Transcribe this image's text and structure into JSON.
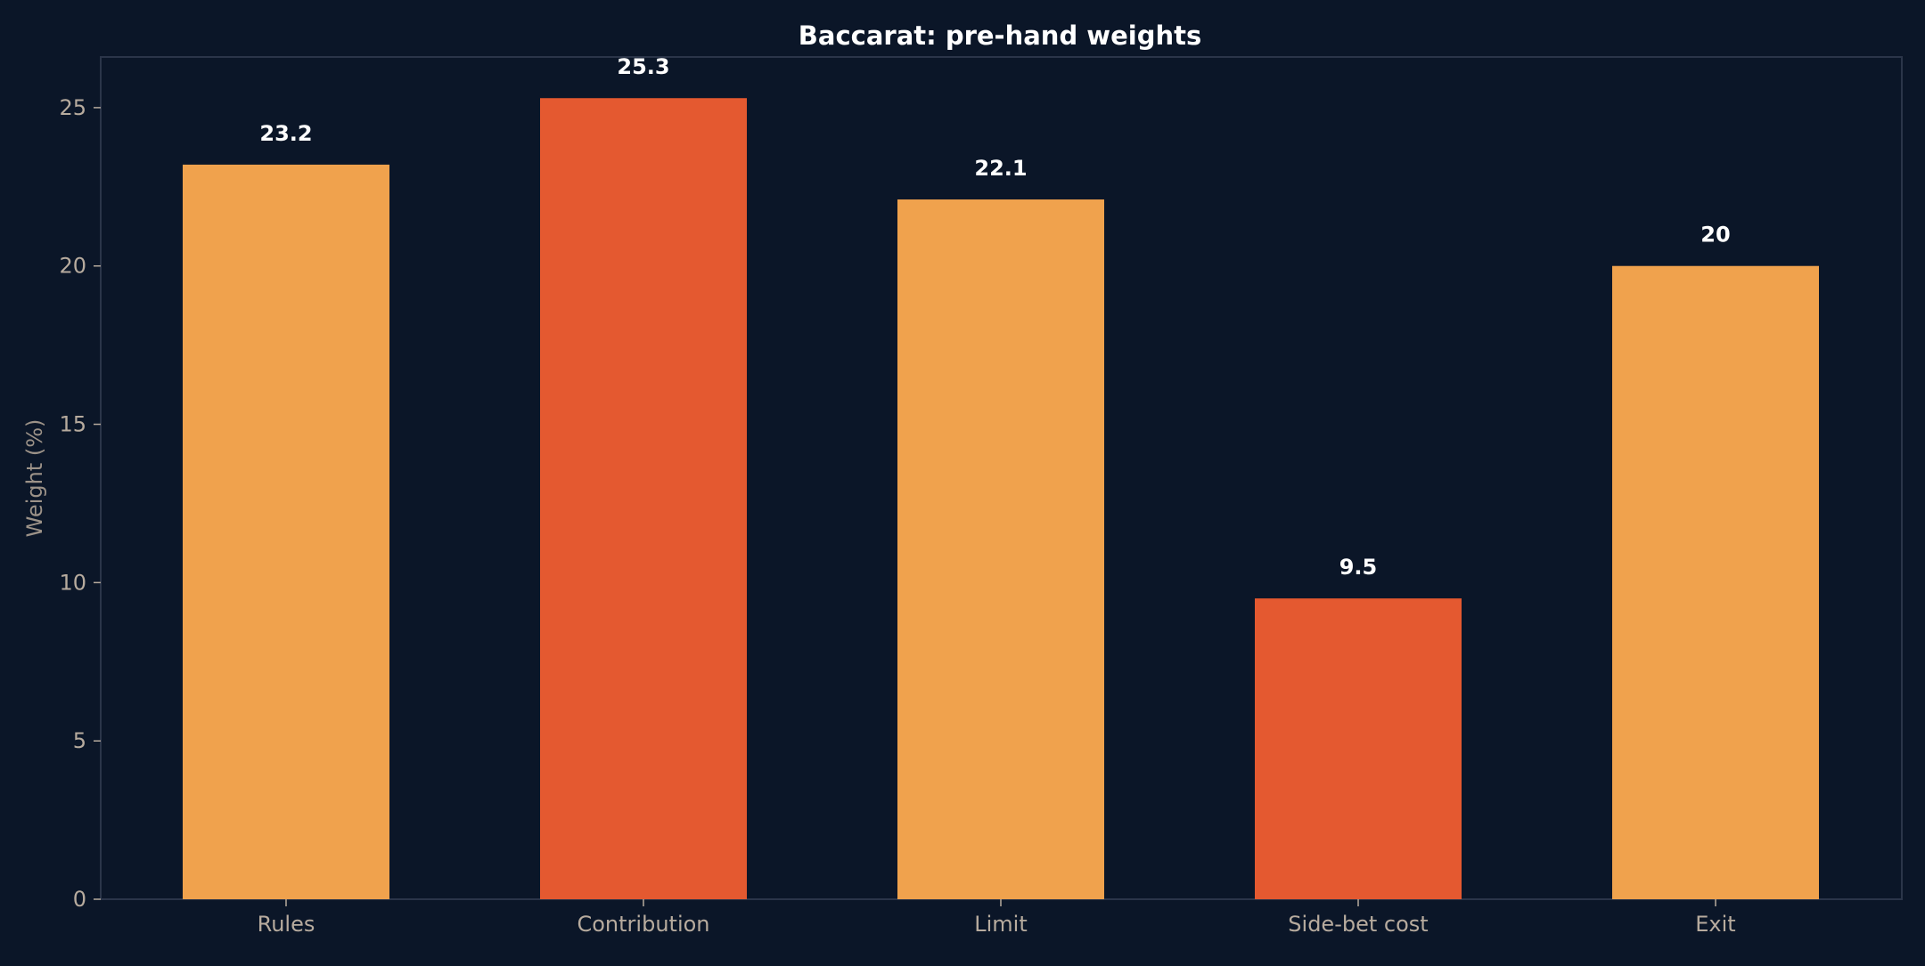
{
  "chart_data": {
    "type": "bar",
    "title": "Baccarat: pre-hand weights",
    "xlabel": "",
    "ylabel": "Weight (%)",
    "categories": [
      "Rules",
      "Contribution",
      "Limit",
      "Side-bet cost",
      "Exit"
    ],
    "values": [
      23.2,
      25.3,
      22.1,
      9.5,
      20
    ],
    "value_labels": [
      "23.2",
      "25.3",
      "22.1",
      "9.5",
      "20"
    ],
    "bar_colors": [
      "#f0a24d",
      "#e45930",
      "#f0a24d",
      "#e45930",
      "#f0a24d"
    ],
    "ylim": [
      0,
      26.6
    ],
    "yticks": [
      0,
      5,
      10,
      15,
      20,
      25
    ],
    "grid": false,
    "legend": "none"
  },
  "colors": {
    "background": "#0b1628",
    "axis": "#2b3549",
    "title": "#ffffff",
    "tick_text": "#b7ab9e",
    "ylabel_text": "#9c9288",
    "value_text": "#ffffff"
  }
}
